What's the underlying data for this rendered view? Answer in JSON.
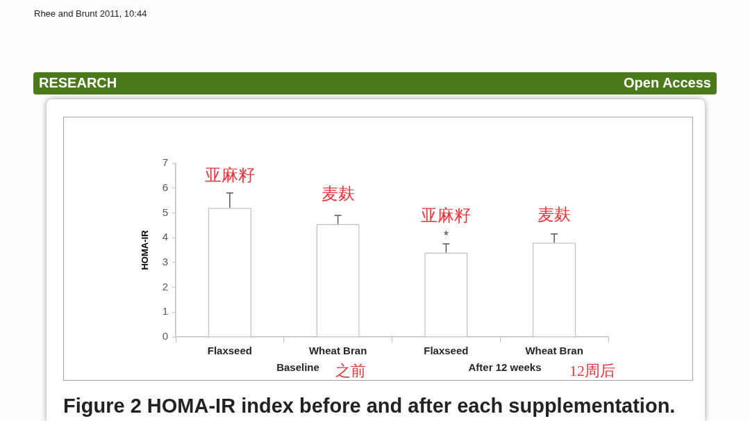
{
  "chart_data": {
    "type": "bar",
    "title": "Figure 2 HOMA-IR index before and after each supplementation.",
    "ylabel": "HOMA-IR",
    "categories": [
      "Flaxseed",
      "Wheat Bran",
      "Flaxseed",
      "Wheat Bran"
    ],
    "values": [
      5.2,
      4.55,
      3.4,
      3.8
    ],
    "color": "#ffffff",
    "errors": [
      [
        5.2,
        5.8
      ],
      [
        4.55,
        4.9
      ],
      [
        3.4,
        3.75
      ],
      [
        3.8,
        4.15
      ]
    ],
    "ylim": [
      0,
      7
    ],
    "yticks": [
      0,
      1,
      2,
      3,
      4,
      5,
      6,
      7
    ],
    "annotations": [
      "RESEARCH",
      "Open Access",
      "Rhee and Brunt 2011, 10:44",
      "亚麻籽",
      "麦麸",
      "亚麻籽",
      "麦麸",
      "*",
      "Baseline",
      "之前",
      "After 12 weeks",
      "12周后"
    ]
  }
}
